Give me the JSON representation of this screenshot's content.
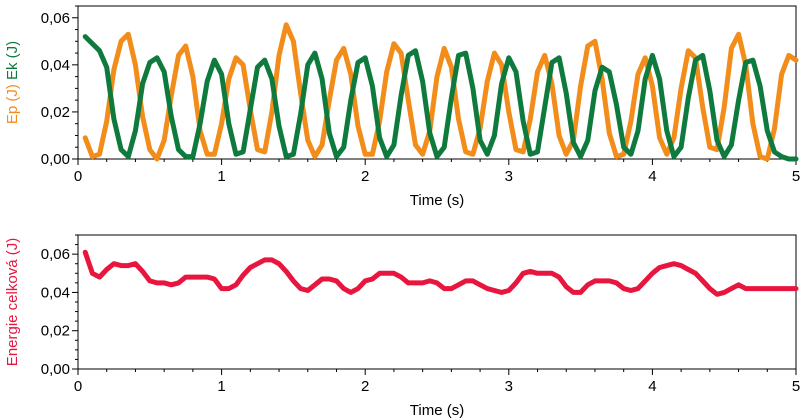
{
  "chart_data": [
    {
      "type": "line",
      "xlabel": "Time (s)",
      "ylabel_parts": [
        {
          "text": "Ep (J)",
          "color": "#f28c1b"
        },
        {
          "text": "Ek (J)",
          "color": "#0f7a3d"
        }
      ],
      "xlim": [
        0,
        5
      ],
      "ylim": [
        0,
        0.065
      ],
      "x_ticks": [
        "0",
        "1",
        "2",
        "3",
        "4",
        "5"
      ],
      "y_ticks": [
        "0,00",
        "0,02",
        "0,04",
        "0,06"
      ],
      "grid": false,
      "series": [
        {
          "color": "#f28c1b",
          "x": [
            0.05,
            0.1,
            0.15,
            0.2,
            0.25,
            0.3,
            0.35,
            0.4,
            0.45,
            0.5,
            0.55,
            0.6,
            0.65,
            0.7,
            0.75,
            0.8,
            0.85,
            0.9,
            0.95,
            1.0,
            1.05,
            1.1,
            1.15,
            1.2,
            1.25,
            1.3,
            1.35,
            1.4,
            1.45,
            1.5,
            1.55,
            1.6,
            1.65,
            1.7,
            1.75,
            1.8,
            1.85,
            1.9,
            1.95,
            2.0,
            2.05,
            2.1,
            2.15,
            2.2,
            2.25,
            2.3,
            2.35,
            2.4,
            2.45,
            2.5,
            2.55,
            2.6,
            2.65,
            2.7,
            2.75,
            2.8,
            2.85,
            2.9,
            2.95,
            3.0,
            3.05,
            3.1,
            3.15,
            3.2,
            3.25,
            3.3,
            3.35,
            3.4,
            3.45,
            3.5,
            3.55,
            3.6,
            3.65,
            3.7,
            3.75,
            3.8,
            3.85,
            3.9,
            3.95,
            4.0,
            4.05,
            4.1,
            4.15,
            4.2,
            4.25,
            4.3,
            4.35,
            4.4,
            4.45,
            4.5,
            4.55,
            4.6,
            4.65,
            4.7,
            4.75,
            4.8,
            4.85,
            4.9,
            4.95,
            5.0
          ],
          "values": [
            0.009,
            0.001,
            0.002,
            0.016,
            0.038,
            0.05,
            0.053,
            0.04,
            0.018,
            0.004,
            0.0,
            0.008,
            0.027,
            0.044,
            0.048,
            0.035,
            0.012,
            0.002,
            0.002,
            0.015,
            0.034,
            0.043,
            0.04,
            0.021,
            0.004,
            0.003,
            0.02,
            0.044,
            0.057,
            0.05,
            0.028,
            0.008,
            0.001,
            0.006,
            0.025,
            0.042,
            0.047,
            0.036,
            0.014,
            0.002,
            0.002,
            0.016,
            0.037,
            0.049,
            0.045,
            0.025,
            0.006,
            0.002,
            0.012,
            0.035,
            0.047,
            0.039,
            0.017,
            0.003,
            0.002,
            0.013,
            0.033,
            0.045,
            0.04,
            0.02,
            0.004,
            0.003,
            0.017,
            0.037,
            0.044,
            0.032,
            0.01,
            0.002,
            0.008,
            0.031,
            0.048,
            0.05,
            0.034,
            0.011,
            0.001,
            0.002,
            0.016,
            0.036,
            0.043,
            0.031,
            0.009,
            0.002,
            0.009,
            0.03,
            0.046,
            0.043,
            0.022,
            0.005,
            0.004,
            0.022,
            0.047,
            0.053,
            0.04,
            0.015,
            0.001,
            0.0,
            0.013,
            0.036,
            0.044,
            0.042
          ]
        },
        {
          "color": "#0f7a3d",
          "x": [
            0.05,
            0.1,
            0.15,
            0.2,
            0.25,
            0.3,
            0.35,
            0.4,
            0.45,
            0.5,
            0.55,
            0.6,
            0.65,
            0.7,
            0.75,
            0.8,
            0.85,
            0.9,
            0.95,
            1.0,
            1.05,
            1.1,
            1.15,
            1.2,
            1.25,
            1.3,
            1.35,
            1.4,
            1.45,
            1.5,
            1.55,
            1.6,
            1.65,
            1.7,
            1.75,
            1.8,
            1.85,
            1.9,
            1.95,
            2.0,
            2.05,
            2.1,
            2.15,
            2.2,
            2.25,
            2.3,
            2.35,
            2.4,
            2.45,
            2.5,
            2.55,
            2.6,
            2.65,
            2.7,
            2.75,
            2.8,
            2.85,
            2.9,
            2.95,
            3.0,
            3.05,
            3.1,
            3.15,
            3.2,
            3.25,
            3.3,
            3.35,
            3.4,
            3.45,
            3.5,
            3.55,
            3.6,
            3.65,
            3.7,
            3.75,
            3.8,
            3.85,
            3.9,
            3.95,
            4.0,
            4.05,
            4.1,
            4.15,
            4.2,
            4.25,
            4.3,
            4.35,
            4.4,
            4.45,
            4.5,
            4.55,
            4.6,
            4.65,
            4.7,
            4.75,
            4.8,
            4.85,
            4.9,
            4.95,
            5.0
          ],
          "values": [
            0.052,
            0.049,
            0.046,
            0.039,
            0.017,
            0.004,
            0.001,
            0.012,
            0.032,
            0.041,
            0.043,
            0.037,
            0.018,
            0.004,
            0.001,
            0.001,
            0.015,
            0.033,
            0.042,
            0.036,
            0.015,
            0.002,
            0.003,
            0.021,
            0.039,
            0.042,
            0.034,
            0.014,
            0.001,
            0.002,
            0.019,
            0.04,
            0.045,
            0.034,
            0.011,
            0.001,
            0.005,
            0.025,
            0.041,
            0.043,
            0.031,
            0.009,
            0.001,
            0.006,
            0.027,
            0.044,
            0.046,
            0.033,
            0.011,
            0.001,
            0.005,
            0.026,
            0.044,
            0.045,
            0.03,
            0.008,
            0.002,
            0.01,
            0.032,
            0.043,
            0.037,
            0.016,
            0.002,
            0.003,
            0.022,
            0.041,
            0.043,
            0.028,
            0.007,
            0.001,
            0.008,
            0.029,
            0.039,
            0.037,
            0.023,
            0.005,
            0.002,
            0.012,
            0.034,
            0.044,
            0.034,
            0.012,
            0.001,
            0.005,
            0.026,
            0.042,
            0.044,
            0.029,
            0.008,
            0.001,
            0.006,
            0.025,
            0.041,
            0.042,
            0.031,
            0.012,
            0.003,
            0.001,
            0.0,
            0.0
          ]
        }
      ]
    },
    {
      "type": "line",
      "xlabel": "Time (s)",
      "ylabel": "Energie celková (J)",
      "xlim": [
        0,
        5
      ],
      "ylim": [
        0,
        0.07
      ],
      "x_ticks": [
        "0",
        "1",
        "2",
        "3",
        "4",
        "5"
      ],
      "y_ticks": [
        "0,00",
        "0,02",
        "0,04",
        "0,06"
      ],
      "grid": false,
      "series": [
        {
          "color": "#e8163f",
          "x": [
            0.05,
            0.1,
            0.15,
            0.2,
            0.25,
            0.3,
            0.35,
            0.4,
            0.45,
            0.5,
            0.55,
            0.6,
            0.65,
            0.7,
            0.75,
            0.8,
            0.85,
            0.9,
            0.95,
            1.0,
            1.05,
            1.1,
            1.15,
            1.2,
            1.25,
            1.3,
            1.35,
            1.4,
            1.45,
            1.5,
            1.55,
            1.6,
            1.65,
            1.7,
            1.75,
            1.8,
            1.85,
            1.9,
            1.95,
            2.0,
            2.05,
            2.1,
            2.15,
            2.2,
            2.25,
            2.3,
            2.35,
            2.4,
            2.45,
            2.5,
            2.55,
            2.6,
            2.65,
            2.7,
            2.75,
            2.8,
            2.85,
            2.9,
            2.95,
            3.0,
            3.05,
            3.1,
            3.15,
            3.2,
            3.25,
            3.3,
            3.35,
            3.4,
            3.45,
            3.5,
            3.55,
            3.6,
            3.65,
            3.7,
            3.75,
            3.8,
            3.85,
            3.9,
            3.95,
            4.0,
            4.05,
            4.1,
            4.15,
            4.2,
            4.25,
            4.3,
            4.35,
            4.4,
            4.45,
            4.5,
            4.55,
            4.6,
            4.65,
            4.7,
            4.75,
            4.8,
            4.85,
            4.9,
            4.95,
            5.0
          ],
          "values": [
            0.061,
            0.05,
            0.048,
            0.052,
            0.055,
            0.054,
            0.054,
            0.055,
            0.051,
            0.046,
            0.045,
            0.045,
            0.044,
            0.045,
            0.048,
            0.048,
            0.048,
            0.048,
            0.047,
            0.042,
            0.042,
            0.044,
            0.049,
            0.053,
            0.055,
            0.057,
            0.057,
            0.055,
            0.051,
            0.046,
            0.042,
            0.041,
            0.044,
            0.047,
            0.047,
            0.046,
            0.042,
            0.04,
            0.042,
            0.046,
            0.047,
            0.05,
            0.05,
            0.05,
            0.048,
            0.045,
            0.045,
            0.045,
            0.046,
            0.045,
            0.042,
            0.042,
            0.044,
            0.046,
            0.046,
            0.044,
            0.042,
            0.041,
            0.04,
            0.041,
            0.045,
            0.05,
            0.051,
            0.05,
            0.05,
            0.05,
            0.048,
            0.043,
            0.04,
            0.04,
            0.044,
            0.046,
            0.046,
            0.046,
            0.045,
            0.042,
            0.041,
            0.042,
            0.046,
            0.05,
            0.053,
            0.054,
            0.055,
            0.054,
            0.052,
            0.05,
            0.046,
            0.042,
            0.039,
            0.04,
            0.042,
            0.044,
            0.042,
            0.042,
            0.042,
            0.042,
            0.042,
            0.042,
            0.042,
            0.042
          ]
        }
      ]
    }
  ]
}
